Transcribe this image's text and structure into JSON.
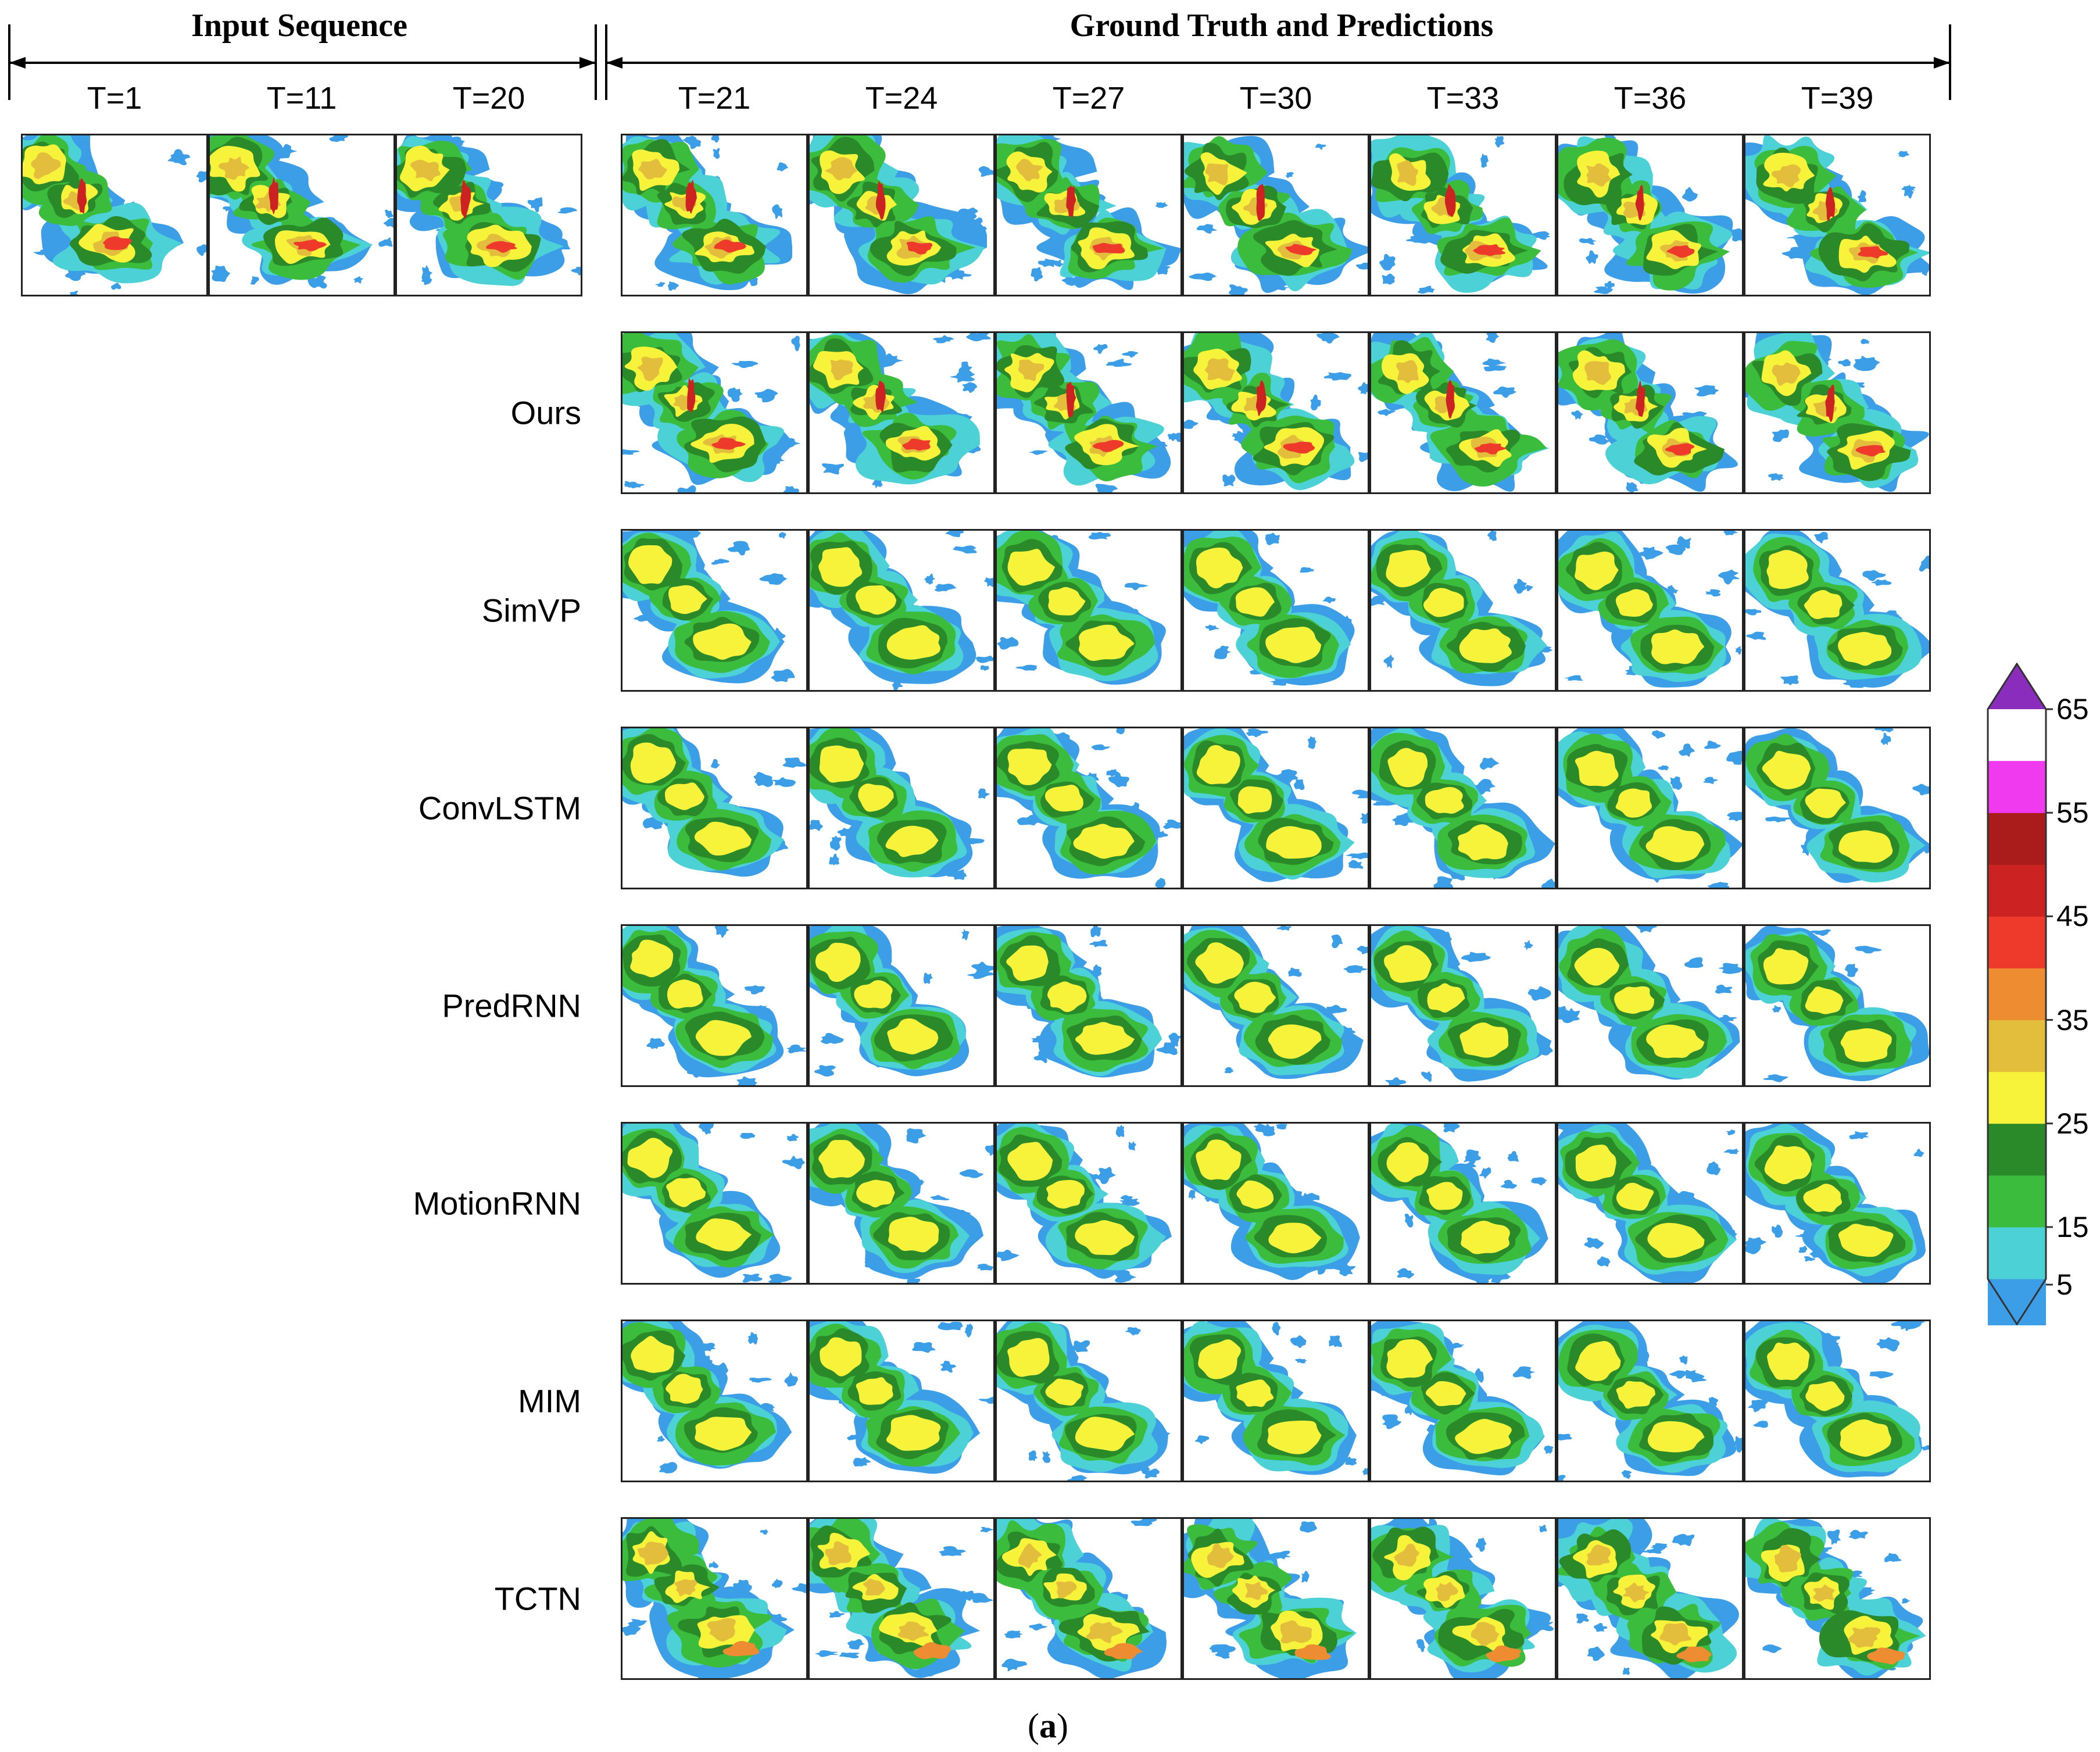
{
  "headers": {
    "input": "Input Sequence",
    "truth": "Ground Truth and Predictions"
  },
  "input_times": [
    "T=1",
    "T=11",
    "T=20"
  ],
  "pred_times": [
    "T=21",
    "T=24",
    "T=27",
    "T=30",
    "T=33",
    "T=36",
    "T=39"
  ],
  "rows": [
    "Ours",
    "SimVP",
    "ConvLSTM",
    "PredRNN",
    "MotionRNN",
    "MIM",
    "TCTN"
  ],
  "caption": {
    "open": "(",
    "letter": "a",
    "close": ")"
  },
  "colorbar": {
    "ticks": [
      "65",
      "55",
      "45",
      "35",
      "25",
      "15",
      "5"
    ],
    "bins": [
      {
        "lo": 5,
        "hi": 10,
        "color": "#ffffff"
      },
      {
        "lo": 10,
        "hi": 15,
        "color": "#3c9ee6"
      },
      {
        "lo": 15,
        "hi": 20,
        "color": "#4cd2d6"
      },
      {
        "lo": 20,
        "hi": 25,
        "color": "#3cbc3c"
      },
      {
        "lo": 25,
        "hi": 30,
        "color": "#2a8a2a"
      },
      {
        "lo": 30,
        "hi": 35,
        "color": "#f7f23a"
      },
      {
        "lo": 35,
        "hi": 40,
        "color": "#e2be3c"
      },
      {
        "lo": 40,
        "hi": 45,
        "color": "#ee8c32"
      },
      {
        "lo": 45,
        "hi": 50,
        "color": "#ee3a2a"
      },
      {
        "lo": 50,
        "hi": 55,
        "color": "#cc2222"
      },
      {
        "lo": 55,
        "hi": 60,
        "color": "#aa1c1c"
      },
      {
        "lo": 60,
        "hi": 65,
        "color": "#f03af0"
      },
      {
        "lo": 65,
        "hi": 70,
        "color": "#8a2cbc"
      }
    ]
  }
}
